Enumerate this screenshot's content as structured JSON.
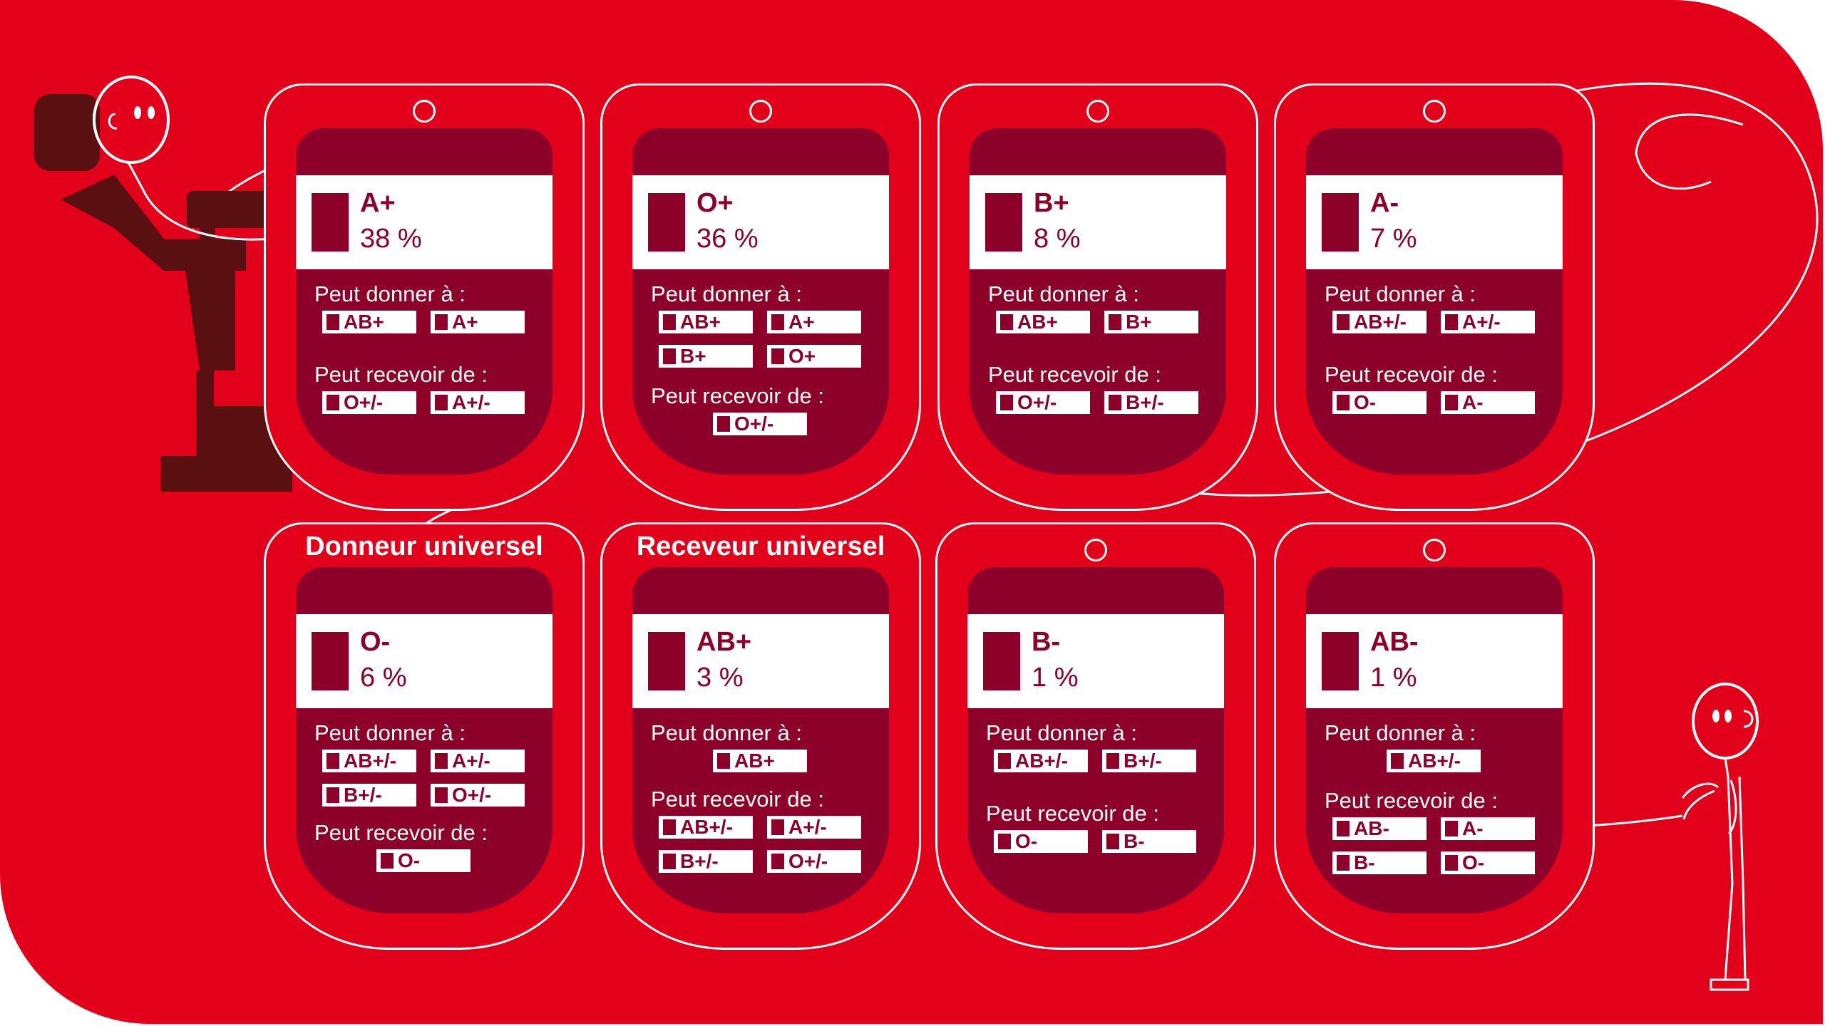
{
  "colors": {
    "background": "#e2001a",
    "bag_dark": "#8c0029",
    "line": "#ffffff",
    "figure_dark": "#5a1010"
  },
  "decorations": [
    "donor-in-chair",
    "tube-loop",
    "standing-person"
  ],
  "bags": [
    {
      "type": "A+",
      "pct": "38 %",
      "give_label": "Peut donner à :",
      "give": [
        "AB+",
        "A+"
      ],
      "receive_label": "Peut recevoir de :",
      "receive": [
        "O+/-",
        "A+/-"
      ]
    },
    {
      "type": "O+",
      "pct": "36 %",
      "give_label": "Peut donner à :",
      "give": [
        "AB+",
        "A+",
        "B+",
        "O+"
      ],
      "receive_label": "Peut recevoir de :",
      "receive": [
        "O+/-"
      ]
    },
    {
      "type": "B+",
      "pct": "8 %",
      "give_label": "Peut donner à :",
      "give": [
        "AB+",
        "B+"
      ],
      "receive_label": "Peut recevoir de :",
      "receive": [
        "O+/-",
        "B+/-"
      ]
    },
    {
      "type": "A-",
      "pct": "7 %",
      "give_label": "Peut donner à :",
      "give": [
        "AB+/-",
        "A+/-"
      ],
      "receive_label": "Peut recevoir de :",
      "receive": [
        "O-",
        "A-"
      ]
    },
    {
      "badge": "Donneur universel",
      "type": "O-",
      "pct": "6 %",
      "give_label": "Peut donner à :",
      "give": [
        "AB+/-",
        "A+/-",
        "B+/-",
        "O+/-"
      ],
      "receive_label": "Peut recevoir de :",
      "receive": [
        "O-"
      ]
    },
    {
      "badge": "Receveur universel",
      "type": "AB+",
      "pct": "3 %",
      "give_label": "Peut donner à :",
      "give": [
        "AB+"
      ],
      "receive_label": "Peut recevoir de :",
      "receive": [
        "AB+/-",
        "A+/-",
        "B+/-",
        "O+/-"
      ]
    },
    {
      "type": "B-",
      "pct": "1 %",
      "give_label": "Peut donner à :",
      "give": [
        "AB+/-",
        "B+/-"
      ],
      "receive_label": "Peut recevoir de :",
      "receive": [
        "O-",
        "B-"
      ]
    },
    {
      "type": "AB-",
      "pct": "1 %",
      "give_label": "Peut donner à :",
      "give": [
        "AB+/-"
      ],
      "receive_label": "Peut recevoir de :",
      "receive": [
        "AB-",
        "A-",
        "B-",
        "O-"
      ]
    }
  ]
}
